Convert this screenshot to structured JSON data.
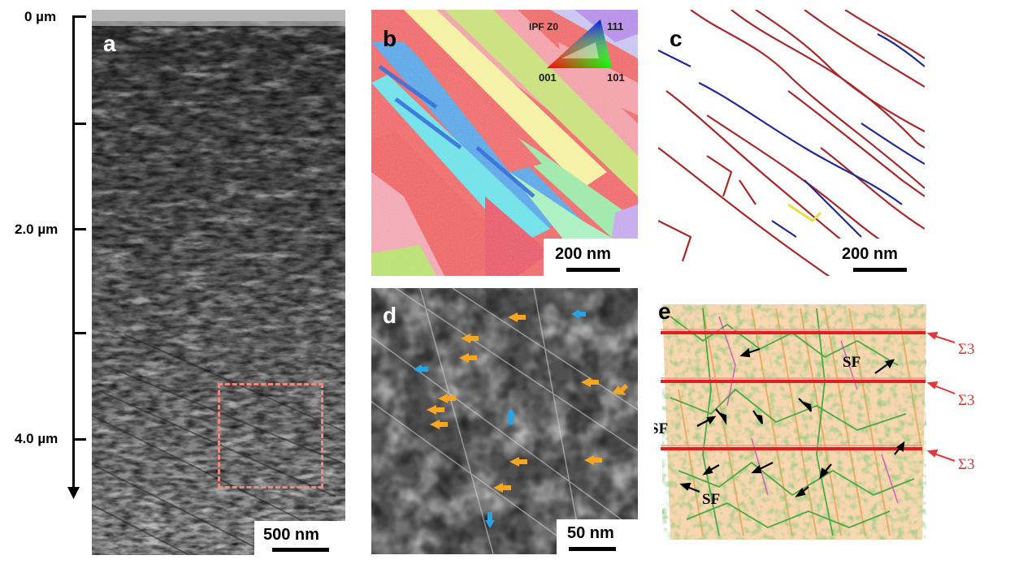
{
  "depth_axis": {
    "labels": [
      "0 µm",
      "2.0 µm",
      "4.0 µm"
    ]
  },
  "panels": {
    "a": {
      "letter": "a",
      "scale": "500 nm"
    },
    "b": {
      "letter": "b",
      "scale": "200 nm",
      "legend_title": "IPF Z0",
      "legend_corners": [
        "001",
        "101",
        "111"
      ]
    },
    "c": {
      "letter": "c",
      "scale": "200 nm"
    },
    "d": {
      "letter": "d",
      "scale": "50 nm"
    },
    "e": {
      "letter": "e",
      "sigma_labels": [
        "Σ3",
        "Σ3",
        "Σ3"
      ],
      "sf_labels": [
        "SF",
        "SF",
        "SF"
      ]
    }
  },
  "colors": {
    "dashed_box": "#f08a7e",
    "orange_arrow": "#f5a623",
    "blue_arrow": "#2aa3e0",
    "sigma_red": "#e0393c",
    "boundary_red": "#a8282a",
    "boundary_blue": "#1e2a9a"
  }
}
